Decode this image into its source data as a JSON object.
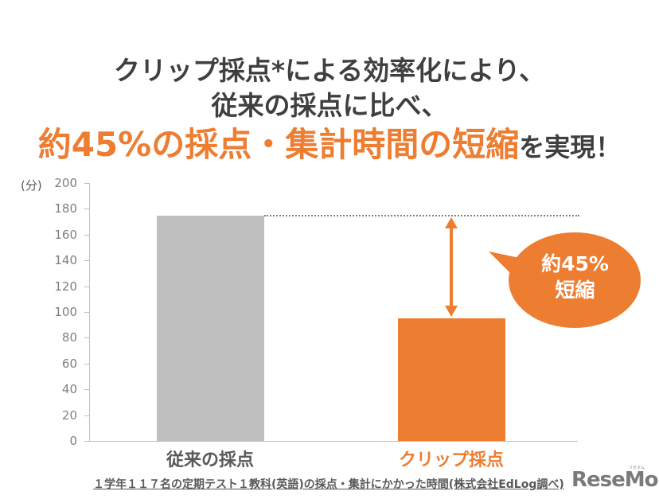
{
  "title": {
    "line1": "クリップ採点*による効率化により、",
    "line2": "従来の採点に比べ、",
    "line3_highlight": "約45%の採点・集計時間の短縮",
    "line3_tail": "を実現！"
  },
  "colors": {
    "accent": "#ed7d31",
    "gray_bar": "#bfbfbf",
    "text_dark": "#3f3f3f",
    "axis": "#bfbfbf",
    "tick_label": "#7f7f7f"
  },
  "callout": {
    "line1": "約45%",
    "line2": "短縮"
  },
  "footnote": "１学年１１７名の定期テスト１教科(英語)の採点・集計にかかった時間(株式会社EdLog調べ)",
  "logo": {
    "text": "ReseMom",
    "ruby": "リセマム"
  },
  "chart_data": {
    "type": "bar",
    "title": "クリップ採点*による効率化により、従来の採点に比べ、約45%の採点・集計時間の短縮を実現！",
    "categories": [
      "従来の採点",
      "クリップ採点"
    ],
    "values": [
      175,
      95
    ],
    "bar_colors": [
      "#bfbfbf",
      "#ed7d31"
    ],
    "xlabel": "",
    "ylabel": "(分)",
    "ylim": [
      0,
      200
    ],
    "yticks": [
      0,
      20,
      40,
      60,
      80,
      100,
      120,
      140,
      160,
      180,
      200
    ],
    "grid": false,
    "legend": null,
    "annotations": [
      {
        "type": "dotted-reference-line",
        "y": 175
      },
      {
        "type": "double-arrow",
        "from": 175,
        "to": 95
      },
      {
        "type": "callout",
        "text": "約45% 短縮"
      }
    ]
  }
}
